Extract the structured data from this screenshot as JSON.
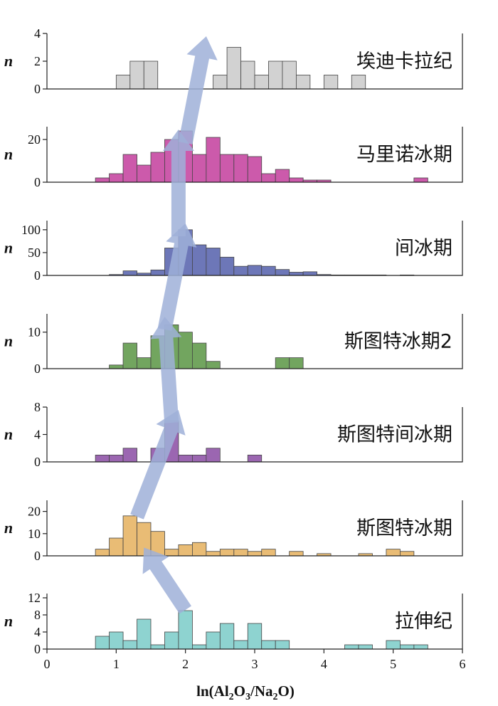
{
  "chart_data": [
    {
      "type": "histogram",
      "title": "埃迪卡拉纪",
      "ylabel": "n",
      "ylim": [
        0,
        4
      ],
      "yticks": [
        "0",
        "2",
        "4"
      ],
      "color": "#d2d2d2",
      "bin_width": 0.2,
      "bins": [
        [
          1.0,
          1
        ],
        [
          1.2,
          2
        ],
        [
          1.4,
          2
        ],
        [
          2.4,
          1
        ],
        [
          2.6,
          3
        ],
        [
          2.8,
          2
        ],
        [
          3.0,
          1
        ],
        [
          3.2,
          2
        ],
        [
          3.4,
          2
        ],
        [
          3.6,
          1
        ],
        [
          4.0,
          1
        ],
        [
          4.4,
          1
        ]
      ]
    },
    {
      "type": "histogram",
      "title": "马里诺冰期",
      "ylabel": "n",
      "ylim": [
        0,
        26
      ],
      "yticks": [
        "0",
        "20"
      ],
      "color": "#cc5aab",
      "bin_width": 0.2,
      "bins": [
        [
          0.7,
          2
        ],
        [
          0.9,
          4
        ],
        [
          1.1,
          13
        ],
        [
          1.3,
          8
        ],
        [
          1.5,
          14
        ],
        [
          1.7,
          20
        ],
        [
          1.9,
          24
        ],
        [
          2.1,
          13
        ],
        [
          2.3,
          21
        ],
        [
          2.5,
          13
        ],
        [
          2.7,
          13
        ],
        [
          2.9,
          12
        ],
        [
          3.1,
          4
        ],
        [
          3.3,
          6
        ],
        [
          3.5,
          2
        ],
        [
          3.7,
          1
        ],
        [
          3.9,
          1
        ],
        [
          5.3,
          2
        ]
      ]
    },
    {
      "type": "histogram",
      "title": "间冰期",
      "ylabel": "n",
      "ylim": [
        0,
        120
      ],
      "yticks": [
        "0",
        "50",
        "100"
      ],
      "color": "#6d77b8",
      "bin_width": 0.2,
      "bins": [
        [
          0.9,
          2
        ],
        [
          1.1,
          10
        ],
        [
          1.3,
          5
        ],
        [
          1.5,
          12
        ],
        [
          1.7,
          60
        ],
        [
          1.9,
          100
        ],
        [
          2.1,
          67
        ],
        [
          2.3,
          60
        ],
        [
          2.5,
          40
        ],
        [
          2.7,
          20
        ],
        [
          2.9,
          22
        ],
        [
          3.1,
          20
        ],
        [
          3.3,
          13
        ],
        [
          3.5,
          7
        ],
        [
          3.7,
          8
        ],
        [
          3.9,
          2
        ],
        [
          4.1,
          1
        ],
        [
          4.3,
          1
        ],
        [
          4.5,
          1
        ],
        [
          4.7,
          1
        ],
        [
          5.1,
          1
        ]
      ]
    },
    {
      "type": "histogram",
      "title": "斯图特冰期2",
      "ylabel": "n",
      "ylim": [
        0,
        15
      ],
      "yticks": [
        "0",
        "10"
      ],
      "color": "#72a55f",
      "bin_width": 0.2,
      "bins": [
        [
          0.9,
          1
        ],
        [
          1.1,
          7
        ],
        [
          1.3,
          3
        ],
        [
          1.5,
          9
        ],
        [
          1.7,
          12
        ],
        [
          1.9,
          10
        ],
        [
          2.1,
          7
        ],
        [
          2.3,
          2
        ],
        [
          3.3,
          3
        ],
        [
          3.5,
          3
        ]
      ]
    },
    {
      "type": "histogram",
      "title": "斯图特间冰期",
      "ylabel": "n",
      "ylim": [
        0,
        8
      ],
      "yticks": [
        "0",
        "4",
        "8"
      ],
      "color": "#9b66b1",
      "bin_width": 0.2,
      "bins": [
        [
          0.7,
          1
        ],
        [
          0.9,
          1
        ],
        [
          1.1,
          2
        ],
        [
          1.5,
          2
        ],
        [
          1.7,
          6
        ],
        [
          1.9,
          1
        ],
        [
          2.1,
          1
        ],
        [
          2.3,
          2
        ],
        [
          2.9,
          1
        ]
      ]
    },
    {
      "type": "histogram",
      "title": "斯图特冰期",
      "ylabel": "n",
      "ylim": [
        0,
        25
      ],
      "yticks": [
        "0",
        "10",
        "20"
      ],
      "color": "#e9bc75",
      "bin_width": 0.2,
      "bins": [
        [
          0.7,
          3
        ],
        [
          0.9,
          8
        ],
        [
          1.1,
          18
        ],
        [
          1.3,
          15
        ],
        [
          1.5,
          11
        ],
        [
          1.7,
          3
        ],
        [
          1.9,
          5
        ],
        [
          2.1,
          6
        ],
        [
          2.3,
          2
        ],
        [
          2.5,
          3
        ],
        [
          2.7,
          3
        ],
        [
          2.9,
          2
        ],
        [
          3.1,
          3
        ],
        [
          3.5,
          2
        ],
        [
          3.9,
          1
        ],
        [
          4.5,
          1
        ],
        [
          4.9,
          3
        ],
        [
          5.1,
          2
        ]
      ]
    },
    {
      "type": "histogram",
      "title": "拉伸纪",
      "ylabel": "n",
      "ylim": [
        0,
        13
      ],
      "yticks": [
        "0",
        "4",
        "8",
        "12"
      ],
      "color": "#8ed3d0",
      "bin_width": 0.2,
      "bins": [
        [
          0.7,
          3
        ],
        [
          0.9,
          4
        ],
        [
          1.1,
          2
        ],
        [
          1.3,
          7
        ],
        [
          1.5,
          1
        ],
        [
          1.7,
          4
        ],
        [
          1.9,
          9
        ],
        [
          2.1,
          1
        ],
        [
          2.3,
          4
        ],
        [
          2.5,
          6
        ],
        [
          2.7,
          2
        ],
        [
          2.9,
          6
        ],
        [
          3.1,
          2
        ],
        [
          3.3,
          2
        ],
        [
          4.3,
          1
        ],
        [
          4.5,
          1
        ],
        [
          4.9,
          2
        ],
        [
          5.1,
          1
        ],
        [
          5.3,
          1
        ]
      ]
    }
  ],
  "x_axis": {
    "label": {
      "prefix": "ln(Al",
      "sub1": "2",
      "mid1": "O",
      "sub2": "3",
      "mid2": "/Na",
      "sub3": "2",
      "suffix": "O)"
    },
    "range": [
      0,
      6
    ],
    "ticks": [
      "0",
      "1",
      "2",
      "3",
      "4",
      "5",
      "6"
    ]
  },
  "arrows": [
    {
      "from": [
        2.0,
        0
      ],
      "to": [
        1.4,
        5
      ]
    },
    {
      "from": [
        1.3,
        0
      ],
      "to": [
        1.9,
        8
      ]
    },
    {
      "from": [
        1.8,
        0
      ],
      "to": [
        1.7,
        15
      ]
    },
    {
      "from": [
        1.7,
        0
      ],
      "to": [
        2.0,
        120
      ]
    },
    {
      "from": [
        1.9,
        0
      ],
      "to": [
        1.9,
        26
      ]
    },
    {
      "from": [
        2.0,
        0
      ],
      "to": [
        2.3,
        4
      ]
    }
  ]
}
